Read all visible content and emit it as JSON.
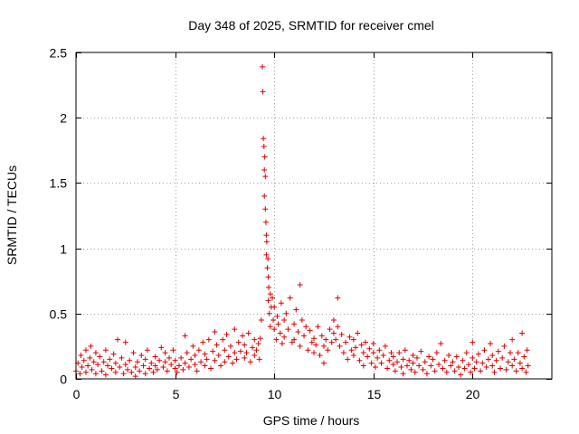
{
  "chart_data": {
    "type": "scatter",
    "title": "Day 348 of 2025, SRMTID for receiver cmel",
    "xlabel": "GPS time / hours",
    "ylabel": "SRMTID / TECUs",
    "xlim": [
      0,
      24
    ],
    "ylim": [
      0,
      2.5
    ],
    "xticks": [
      0,
      5,
      10,
      15,
      20
    ],
    "yticks": [
      0,
      0.5,
      1,
      1.5,
      2,
      2.5
    ],
    "xtick_labels": [
      "0",
      "5",
      "10",
      "15",
      "20"
    ],
    "ytick_labels": [
      "0",
      "0.5",
      "1",
      "1.5",
      "2",
      "2.5"
    ],
    "grid": true,
    "marker": "+",
    "color": "#e00000",
    "series": [
      {
        "name": "SRMTID",
        "points": [
          [
            0.0,
            0.06
          ],
          [
            0.1,
            0.12
          ],
          [
            0.2,
            0.04
          ],
          [
            0.25,
            0.18
          ],
          [
            0.3,
            0.09
          ],
          [
            0.4,
            0.14
          ],
          [
            0.5,
            0.05
          ],
          [
            0.5,
            0.22
          ],
          [
            0.6,
            0.1
          ],
          [
            0.7,
            0.16
          ],
          [
            0.75,
            0.25
          ],
          [
            0.8,
            0.07
          ],
          [
            0.9,
            0.13
          ],
          [
            1.0,
            0.2
          ],
          [
            1.0,
            0.04
          ],
          [
            1.1,
            0.11
          ],
          [
            1.2,
            0.17
          ],
          [
            1.3,
            0.06
          ],
          [
            1.4,
            0.13
          ],
          [
            1.5,
            0.22
          ],
          [
            1.5,
            0.03
          ],
          [
            1.6,
            0.1
          ],
          [
            1.7,
            0.15
          ],
          [
            1.8,
            0.08
          ],
          [
            1.9,
            0.19
          ],
          [
            2.0,
            0.05
          ],
          [
            2.0,
            0.12
          ],
          [
            2.1,
            0.3
          ],
          [
            2.2,
            0.09
          ],
          [
            2.3,
            0.16
          ],
          [
            2.4,
            0.04
          ],
          [
            2.5,
            0.28
          ],
          [
            2.5,
            0.11
          ],
          [
            2.6,
            0.07
          ],
          [
            2.7,
            0.14
          ],
          [
            2.8,
            0.05
          ],
          [
            2.9,
            0.2
          ],
          [
            3.0,
            0.09
          ],
          [
            3.0,
            0.02
          ],
          [
            3.1,
            0.13
          ],
          [
            3.2,
            0.06
          ],
          [
            3.3,
            0.18
          ],
          [
            3.4,
            0.1
          ],
          [
            3.5,
            0.04
          ],
          [
            3.5,
            0.15
          ],
          [
            3.6,
            0.22
          ],
          [
            3.7,
            0.08
          ],
          [
            3.8,
            0.12
          ],
          [
            3.9,
            0.05
          ],
          [
            4.0,
            0.17
          ],
          [
            4.0,
            0.1
          ],
          [
            4.1,
            0.07
          ],
          [
            4.2,
            0.14
          ],
          [
            4.3,
            0.24
          ],
          [
            4.4,
            0.09
          ],
          [
            4.5,
            0.13
          ],
          [
            4.5,
            0.2
          ],
          [
            4.6,
            0.06
          ],
          [
            4.7,
            0.16
          ],
          [
            4.8,
            0.11
          ],
          [
            4.9,
            0.22
          ],
          [
            5.0,
            0.14
          ],
          [
            5.0,
            0.08
          ],
          [
            5.1,
            0.05
          ],
          [
            5.2,
            0.1
          ],
          [
            5.3,
            0.16
          ],
          [
            5.4,
            0.07
          ],
          [
            5.5,
            0.33
          ],
          [
            5.5,
            0.12
          ],
          [
            5.6,
            0.2
          ],
          [
            5.7,
            0.09
          ],
          [
            5.8,
            0.15
          ],
          [
            5.9,
            0.25
          ],
          [
            6.0,
            0.11
          ],
          [
            6.0,
            0.18
          ],
          [
            6.1,
            0.06
          ],
          [
            6.2,
            0.22
          ],
          [
            6.3,
            0.13
          ],
          [
            6.4,
            0.28
          ],
          [
            6.5,
            0.1
          ],
          [
            6.5,
            0.19
          ],
          [
            6.6,
            0.15
          ],
          [
            6.7,
            0.3
          ],
          [
            6.8,
            0.08
          ],
          [
            6.9,
            0.21
          ],
          [
            7.0,
            0.36
          ],
          [
            7.0,
            0.14
          ],
          [
            7.1,
            0.26
          ],
          [
            7.2,
            0.18
          ],
          [
            7.3,
            0.1
          ],
          [
            7.4,
            0.3
          ],
          [
            7.5,
            0.22
          ],
          [
            7.5,
            0.13
          ],
          [
            7.6,
            0.34
          ],
          [
            7.7,
            0.17
          ],
          [
            7.8,
            0.25
          ],
          [
            7.9,
            0.12
          ],
          [
            8.0,
            0.2
          ],
          [
            8.0,
            0.38
          ],
          [
            8.1,
            0.15
          ],
          [
            8.2,
            0.28
          ],
          [
            8.3,
            0.21
          ],
          [
            8.4,
            0.33
          ],
          [
            8.5,
            0.16
          ],
          [
            8.5,
            0.26
          ],
          [
            8.6,
            0.2
          ],
          [
            8.7,
            0.35
          ],
          [
            8.8,
            0.13
          ],
          [
            8.9,
            0.24
          ],
          [
            9.0,
            0.3
          ],
          [
            9.0,
            0.18
          ],
          [
            9.1,
            0.22
          ],
          [
            9.2,
            0.27
          ],
          [
            9.25,
            0.15
          ],
          [
            9.3,
            0.31
          ],
          [
            9.35,
            0.45
          ],
          [
            9.4,
            2.39
          ],
          [
            9.42,
            2.2
          ],
          [
            9.45,
            1.84
          ],
          [
            9.48,
            1.78
          ],
          [
            9.5,
            1.6
          ],
          [
            9.5,
            1.4
          ],
          [
            9.52,
            1.7
          ],
          [
            9.55,
            1.55
          ],
          [
            9.55,
            1.3
          ],
          [
            9.58,
            1.2
          ],
          [
            9.6,
            1.1
          ],
          [
            9.6,
            0.95
          ],
          [
            9.62,
            1.05
          ],
          [
            9.65,
            0.85
          ],
          [
            9.68,
            0.92
          ],
          [
            9.7,
            0.78
          ],
          [
            9.7,
            0.6
          ],
          [
            9.72,
            0.7
          ],
          [
            9.75,
            0.5
          ],
          [
            9.8,
            0.65
          ],
          [
            9.8,
            0.4
          ],
          [
            9.85,
            0.55
          ],
          [
            9.9,
            0.62
          ],
          [
            9.95,
            0.45
          ],
          [
            10.0,
            0.38
          ],
          [
            10.0,
            0.55
          ],
          [
            10.1,
            0.3
          ],
          [
            10.15,
            0.48
          ],
          [
            10.2,
            0.42
          ],
          [
            10.3,
            0.35
          ],
          [
            10.35,
            0.58
          ],
          [
            10.4,
            0.27
          ],
          [
            10.5,
            0.45
          ],
          [
            10.5,
            0.32
          ],
          [
            10.6,
            0.5
          ],
          [
            10.7,
            0.38
          ],
          [
            10.8,
            0.62
          ],
          [
            10.9,
            0.28
          ],
          [
            11.0,
            0.42
          ],
          [
            11.0,
            0.3
          ],
          [
            11.1,
            0.53
          ],
          [
            11.2,
            0.36
          ],
          [
            11.3,
            0.72
          ],
          [
            11.3,
            0.25
          ],
          [
            11.4,
            0.45
          ],
          [
            11.5,
            0.33
          ],
          [
            11.6,
            0.4
          ],
          [
            11.7,
            0.22
          ],
          [
            11.8,
            0.37
          ],
          [
            11.9,
            0.28
          ],
          [
            12.0,
            0.31
          ],
          [
            12.0,
            0.2
          ],
          [
            12.1,
            0.26
          ],
          [
            12.2,
            0.4
          ],
          [
            12.3,
            0.18
          ],
          [
            12.4,
            0.33
          ],
          [
            12.5,
            0.25
          ],
          [
            12.5,
            0.12
          ],
          [
            12.6,
            0.3
          ],
          [
            12.7,
            0.22
          ],
          [
            12.8,
            0.38
          ],
          [
            12.9,
            0.28
          ],
          [
            13.0,
            0.45
          ],
          [
            13.0,
            0.35
          ],
          [
            13.1,
            0.3
          ],
          [
            13.2,
            0.62
          ],
          [
            13.2,
            0.4
          ],
          [
            13.3,
            0.25
          ],
          [
            13.4,
            0.34
          ],
          [
            13.5,
            0.2
          ],
          [
            13.6,
            0.28
          ],
          [
            13.7,
            0.15
          ],
          [
            13.8,
            0.32
          ],
          [
            13.9,
            0.22
          ],
          [
            14.0,
            0.3
          ],
          [
            14.0,
            0.18
          ],
          [
            14.1,
            0.24
          ],
          [
            14.2,
            0.35
          ],
          [
            14.3,
            0.14
          ],
          [
            14.4,
            0.26
          ],
          [
            14.5,
            0.2
          ],
          [
            14.5,
            0.1
          ],
          [
            14.6,
            0.28
          ],
          [
            14.7,
            0.17
          ],
          [
            14.8,
            0.23
          ],
          [
            14.9,
            0.12
          ],
          [
            15.0,
            0.2
          ],
          [
            15.0,
            0.27
          ],
          [
            15.1,
            0.09
          ],
          [
            15.2,
            0.16
          ],
          [
            15.3,
            0.22
          ],
          [
            15.4,
            0.12
          ],
          [
            15.5,
            0.18
          ],
          [
            15.6,
            0.25
          ],
          [
            15.7,
            0.08
          ],
          [
            15.8,
            0.14
          ],
          [
            15.9,
            0.2
          ],
          [
            16.0,
            0.11
          ],
          [
            16.0,
            0.17
          ],
          [
            16.1,
            0.06
          ],
          [
            16.2,
            0.13
          ],
          [
            16.3,
            0.2
          ],
          [
            16.4,
            0.09
          ],
          [
            16.5,
            0.15
          ],
          [
            16.5,
            0.04
          ],
          [
            16.6,
            0.22
          ],
          [
            16.7,
            0.1
          ],
          [
            16.8,
            0.14
          ],
          [
            16.9,
            0.07
          ],
          [
            17.0,
            0.18
          ],
          [
            17.0,
            0.12
          ],
          [
            17.1,
            0.05
          ],
          [
            17.2,
            0.16
          ],
          [
            17.3,
            0.1
          ],
          [
            17.4,
            0.21
          ],
          [
            17.5,
            0.07
          ],
          [
            17.6,
            0.13
          ],
          [
            17.7,
            0.04
          ],
          [
            17.8,
            0.17
          ],
          [
            17.9,
            0.1
          ],
          [
            18.0,
            0.15
          ],
          [
            18.1,
            0.06
          ],
          [
            18.2,
            0.2
          ],
          [
            18.3,
            0.11
          ],
          [
            18.4,
            0.27
          ],
          [
            18.5,
            0.08
          ],
          [
            18.6,
            0.14
          ],
          [
            18.7,
            0.05
          ],
          [
            18.8,
            0.18
          ],
          [
            18.9,
            0.1
          ],
          [
            19.0,
            0.13
          ],
          [
            19.1,
            0.06
          ],
          [
            19.2,
            0.17
          ],
          [
            19.3,
            0.09
          ],
          [
            19.4,
            0.03
          ],
          [
            19.5,
            0.14
          ],
          [
            19.6,
            0.08
          ],
          [
            19.7,
            0.2
          ],
          [
            19.8,
            0.11
          ],
          [
            19.9,
            0.05
          ],
          [
            20.0,
            0.16
          ],
          [
            20.0,
            0.28
          ],
          [
            20.1,
            0.08
          ],
          [
            20.2,
            0.13
          ],
          [
            20.3,
            0.19
          ],
          [
            20.4,
            0.06
          ],
          [
            20.5,
            0.12
          ],
          [
            20.6,
            0.22
          ],
          [
            20.7,
            0.09
          ],
          [
            20.8,
            0.15
          ],
          [
            20.9,
            0.27
          ],
          [
            21.0,
            0.1
          ],
          [
            21.0,
            0.18
          ],
          [
            21.1,
            0.05
          ],
          [
            21.2,
            0.14
          ],
          [
            21.3,
            0.21
          ],
          [
            21.4,
            0.08
          ],
          [
            21.5,
            0.16
          ],
          [
            21.6,
            0.25
          ],
          [
            21.7,
            0.07
          ],
          [
            21.8,
            0.13
          ],
          [
            21.9,
            0.2
          ],
          [
            22.0,
            0.1
          ],
          [
            22.0,
            0.3
          ],
          [
            22.1,
            0.15
          ],
          [
            22.2,
            0.06
          ],
          [
            22.3,
            0.2
          ],
          [
            22.4,
            0.12
          ],
          [
            22.5,
            0.35
          ],
          [
            22.5,
            0.08
          ],
          [
            22.6,
            0.17
          ],
          [
            22.7,
            0.05
          ],
          [
            22.75,
            0.22
          ],
          [
            22.8,
            0.1
          ]
        ]
      }
    ]
  }
}
